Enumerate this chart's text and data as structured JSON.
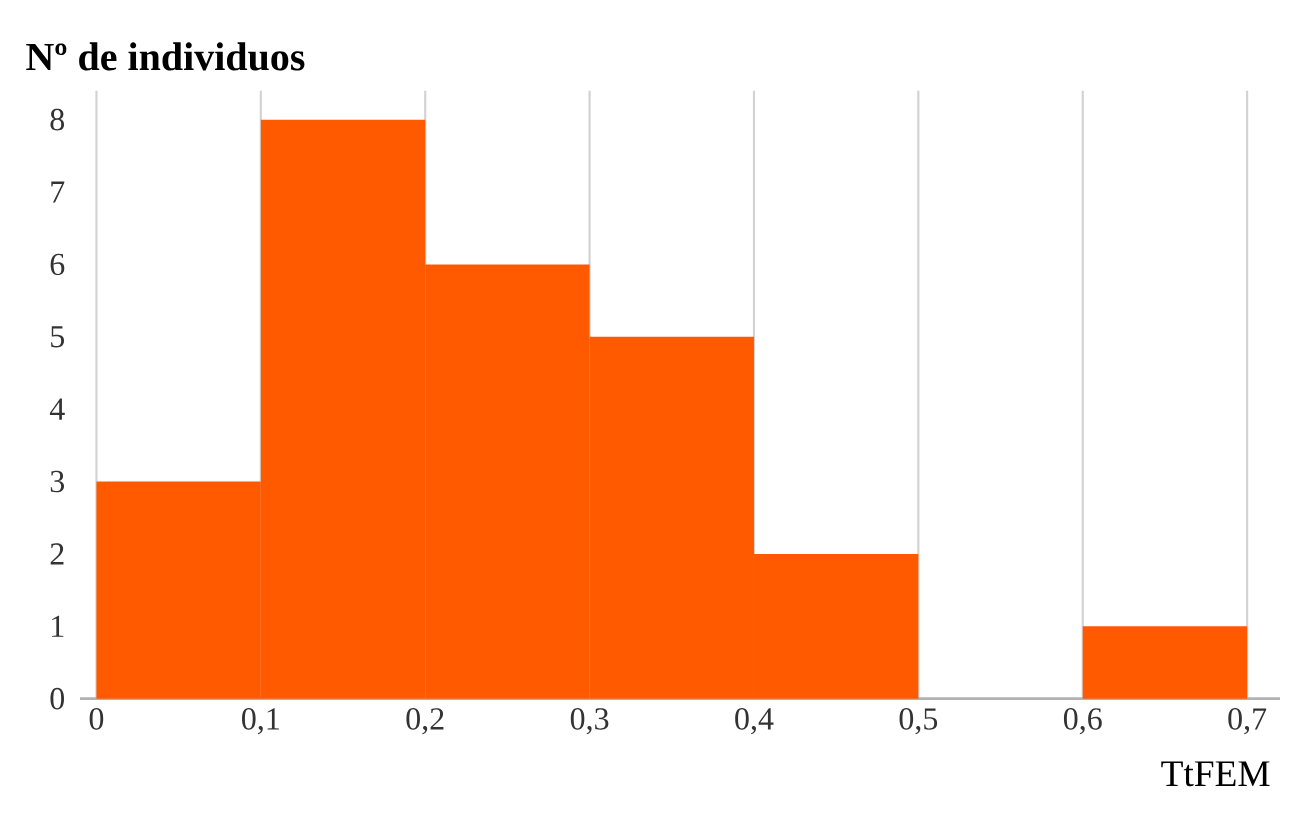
{
  "chart_data": {
    "type": "histogram",
    "ylabel": "Nº de individuos",
    "xlabel": "TtFEM",
    "bins": [
      0,
      0.1,
      0.2,
      0.3,
      0.4,
      0.5,
      0.6,
      0.7
    ],
    "values": [
      3,
      8,
      6,
      5,
      2,
      0,
      1
    ],
    "color": "#ff5a00",
    "xlim": [
      -0.01,
      0.72
    ],
    "ylim": [
      0,
      8.4
    ],
    "xticks": [
      0,
      {
        "value": 0.1,
        "label": "0,1"
      },
      {
        "value": 0.2,
        "label": "0,2"
      },
      {
        "value": 0.3,
        "label": "0,3"
      },
      {
        "value": 0.4,
        "label": "0,4"
      },
      {
        "value": 0.5,
        "label": "0,5"
      },
      {
        "value": 0.6,
        "label": "0,6"
      },
      {
        "value": 0.7,
        "label": "0,7"
      }
    ],
    "yticks": [
      0,
      1,
      2,
      3,
      4,
      5,
      6,
      7,
      8
    ],
    "grid": "x"
  }
}
